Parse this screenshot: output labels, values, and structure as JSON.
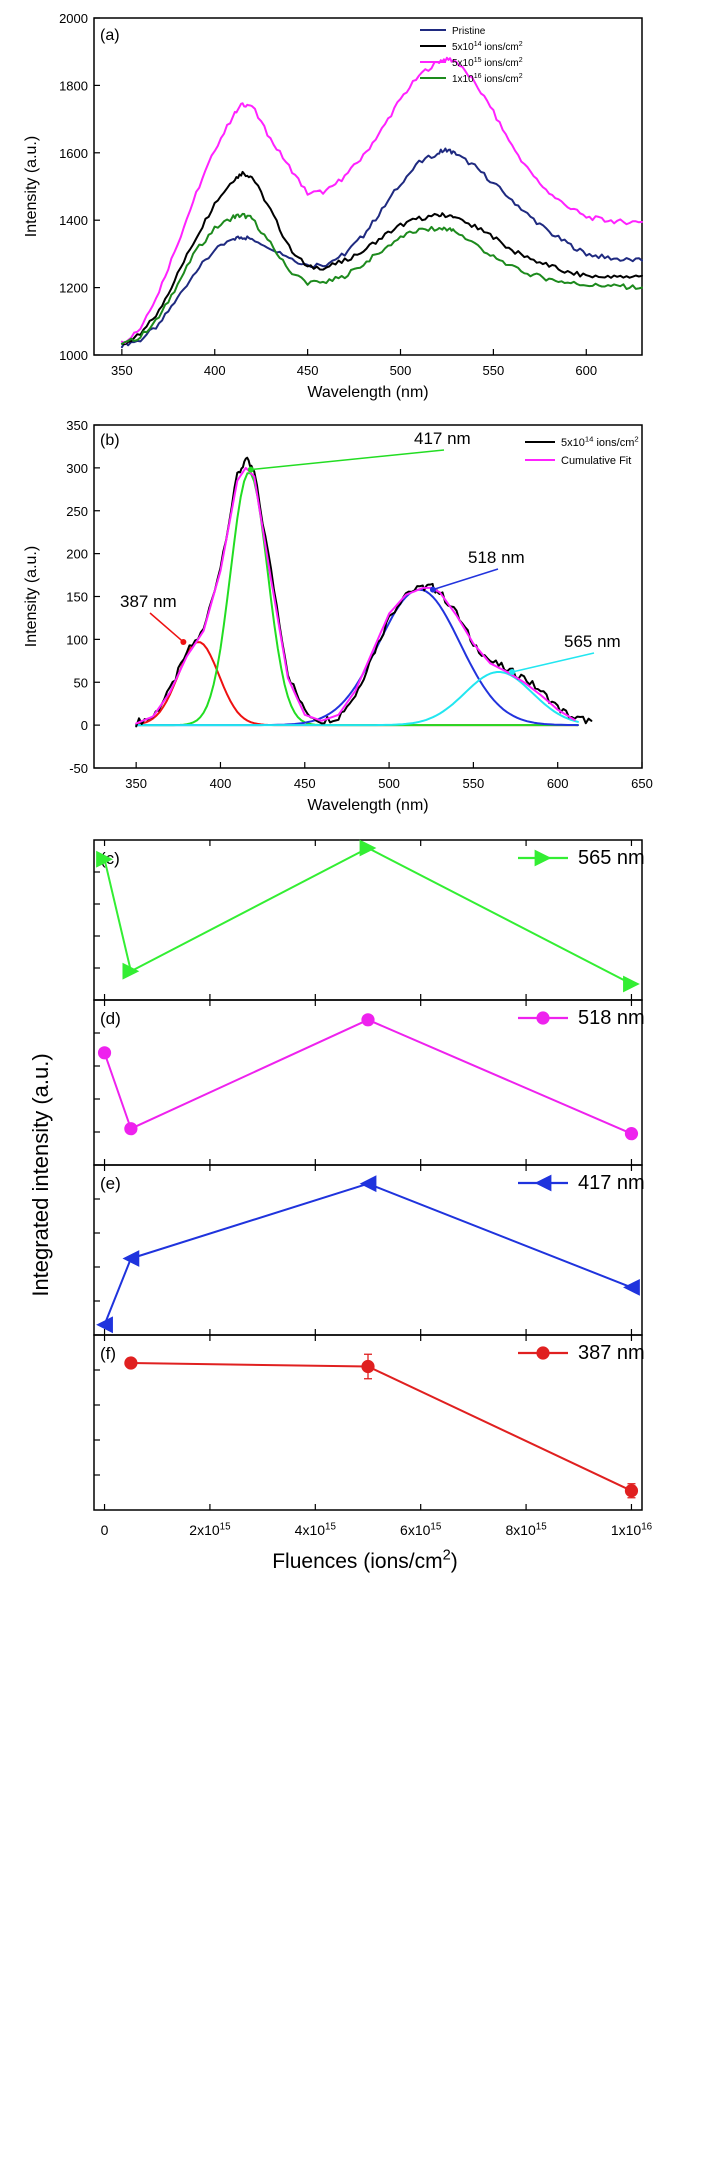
{
  "chart_data": [
    {
      "panel": "(a)",
      "type": "line",
      "xlabel": "Wavelength (nm)",
      "ylabel": "Intensity (a.u.)",
      "xlim": [
        335,
        630
      ],
      "ylim": [
        1000,
        2000
      ],
      "xticks": [
        350,
        400,
        450,
        500,
        550,
        600
      ],
      "yticks": [
        1000,
        1200,
        1400,
        1600,
        1800,
        2000
      ],
      "legend_position": "top-right",
      "series": [
        {
          "name": "Pristine",
          "exp": "",
          "unit": "",
          "color": "#1f2a80",
          "x": [
            350,
            360,
            370,
            380,
            390,
            400,
            410,
            415,
            420,
            430,
            440,
            450,
            460,
            470,
            480,
            490,
            500,
            510,
            520,
            525,
            530,
            540,
            550,
            560,
            570,
            580,
            590,
            600,
            610,
            620,
            630
          ],
          "y": [
            1030,
            1045,
            1090,
            1170,
            1250,
            1310,
            1345,
            1350,
            1345,
            1320,
            1290,
            1265,
            1270,
            1300,
            1355,
            1430,
            1510,
            1570,
            1600,
            1610,
            1595,
            1560,
            1510,
            1460,
            1410,
            1365,
            1330,
            1300,
            1290,
            1283,
            1280
          ]
        },
        {
          "name": "5x10",
          "exp": "14",
          "unit": " ions/cm",
          "color": "#000000",
          "x": [
            350,
            360,
            370,
            380,
            390,
            400,
            410,
            415,
            420,
            430,
            440,
            450,
            460,
            470,
            480,
            490,
            500,
            510,
            520,
            525,
            530,
            540,
            550,
            560,
            570,
            580,
            590,
            600,
            610,
            620,
            630
          ],
          "y": [
            1030,
            1060,
            1130,
            1240,
            1350,
            1450,
            1520,
            1540,
            1530,
            1430,
            1320,
            1260,
            1260,
            1280,
            1310,
            1350,
            1385,
            1405,
            1415,
            1415,
            1405,
            1380,
            1350,
            1310,
            1285,
            1265,
            1245,
            1235,
            1230,
            1232,
            1235
          ]
        },
        {
          "name": "5x10",
          "exp": "15",
          "unit": " ions/cm",
          "color": "#ff22ff",
          "x": [
            350,
            360,
            370,
            380,
            390,
            400,
            410,
            415,
            420,
            430,
            440,
            450,
            460,
            470,
            480,
            490,
            500,
            510,
            520,
            525,
            530,
            540,
            550,
            560,
            570,
            580,
            590,
            600,
            610,
            620,
            630
          ],
          "y": [
            1035,
            1080,
            1190,
            1330,
            1480,
            1610,
            1710,
            1745,
            1740,
            1640,
            1560,
            1480,
            1485,
            1530,
            1590,
            1670,
            1760,
            1830,
            1870,
            1880,
            1870,
            1810,
            1720,
            1620,
            1540,
            1480,
            1440,
            1410,
            1400,
            1395,
            1395
          ]
        },
        {
          "name": "1x10",
          "exp": "16",
          "unit": " ions/cm",
          "color": "#1d8a1d",
          "x": [
            350,
            360,
            370,
            380,
            390,
            400,
            410,
            415,
            420,
            430,
            440,
            450,
            460,
            470,
            480,
            490,
            500,
            510,
            520,
            525,
            530,
            540,
            550,
            560,
            570,
            580,
            590,
            600,
            610,
            620,
            630
          ],
          "y": [
            1030,
            1055,
            1110,
            1210,
            1310,
            1375,
            1410,
            1415,
            1405,
            1330,
            1250,
            1215,
            1215,
            1235,
            1270,
            1310,
            1350,
            1370,
            1375,
            1375,
            1365,
            1330,
            1290,
            1260,
            1240,
            1225,
            1215,
            1208,
            1205,
            1203,
            1200
          ]
        }
      ]
    },
    {
      "panel": "(b)",
      "type": "line",
      "xlabel": "Wavelength (nm)",
      "ylabel": "Intensity (a.u.)",
      "xlim": [
        325,
        650
      ],
      "ylim": [
        -50,
        350
      ],
      "xticks": [
        350,
        400,
        450,
        500,
        550,
        600,
        650
      ],
      "yticks": [
        -50,
        0,
        50,
        100,
        150,
        200,
        250,
        300,
        350
      ],
      "legend_position": "top-right",
      "series": [
        {
          "name": "5x10",
          "exp": "14",
          "unit": " ions/cm",
          "color": "#000000",
          "x": [
            350,
            360,
            370,
            380,
            390,
            400,
            410,
            415,
            420,
            430,
            440,
            450,
            460,
            470,
            480,
            490,
            500,
            510,
            520,
            525,
            530,
            540,
            550,
            560,
            570,
            580,
            590,
            600,
            610,
            620
          ],
          "y": [
            3,
            10,
            40,
            85,
            110,
            185,
            290,
            310,
            295,
            180,
            60,
            15,
            5,
            10,
            35,
            80,
            125,
            155,
            160,
            162,
            155,
            130,
            95,
            75,
            65,
            55,
            40,
            20,
            8,
            5
          ]
        },
        {
          "name": "Cumulative Fit",
          "exp": "",
          "unit": "",
          "color": "#ff22ff",
          "x": [
            350,
            360,
            370,
            380,
            390,
            400,
            410,
            415,
            420,
            430,
            440,
            450,
            460,
            470,
            480,
            490,
            500,
            510,
            520,
            525,
            530,
            540,
            550,
            560,
            570,
            580,
            590,
            600,
            610
          ],
          "y": [
            2,
            10,
            38,
            80,
            110,
            180,
            285,
            300,
            290,
            170,
            55,
            12,
            5,
            12,
            40,
            85,
            130,
            152,
            160,
            160,
            155,
            128,
            95,
            72,
            62,
            50,
            35,
            18,
            6
          ]
        }
      ],
      "components": [
        {
          "label": "387 nm",
          "color": "#ee1111",
          "center": 387,
          "height": 97,
          "sigma": 12
        },
        {
          "label": "417 nm",
          "color": "#22dd22",
          "center": 417,
          "height": 295,
          "sigma": 11
        },
        {
          "label": "518 nm",
          "color": "#2233dd",
          "center": 518,
          "height": 158,
          "sigma": 24
        },
        {
          "label": "565 nm",
          "color": "#22e6f0",
          "center": 565,
          "height": 62,
          "sigma": 20
        }
      ]
    },
    {
      "panel": "(c)",
      "type": "line",
      "series_label": "565 nm",
      "color": "#33ee33",
      "marker": "triangle-right",
      "x": [
        0,
        500000000000000.0,
        5000000000000000.0,
        1e+16
      ],
      "y": [
        0.88,
        0.18,
        0.95,
        0.1
      ],
      "error": [
        0,
        0,
        0,
        0
      ]
    },
    {
      "panel": "(d)",
      "type": "line",
      "series_label": "518 nm",
      "color": "#ee22ee",
      "marker": "circle",
      "x": [
        0,
        500000000000000.0,
        5000000000000000.0,
        1e+16
      ],
      "y": [
        0.68,
        0.22,
        0.88,
        0.19
      ],
      "error": [
        0,
        0,
        0,
        0
      ]
    },
    {
      "panel": "(e)",
      "type": "line",
      "series_label": "417 nm",
      "color": "#1f33dd",
      "marker": "triangle-left",
      "x": [
        0,
        500000000000000.0,
        5000000000000000.0,
        1e+16
      ],
      "y": [
        0.06,
        0.45,
        0.89,
        0.28
      ],
      "error": [
        0,
        0,
        0,
        0
      ]
    },
    {
      "panel": "(f)",
      "type": "line",
      "series_label": "387 nm",
      "color": "#e02020",
      "marker": "circle",
      "x": [
        0,
        500000000000000.0,
        5000000000000000.0,
        1e+16
      ],
      "y": [
        null,
        0.84,
        0.82,
        0.11
      ],
      "error": [
        0,
        0.02,
        0.07,
        0.04
      ]
    }
  ],
  "shared_axes": {
    "ylabel_cdef": "Integrated intensity (a.u.)",
    "xlabel_cdef": "Fluences (ions/cm",
    "xlabel_sup": "2",
    "xlabel_close": ")",
    "xlim": [
      -200000000000000.0,
      1.02e+16
    ],
    "xticks": [
      {
        "value": 0,
        "base": "0",
        "exp": ""
      },
      {
        "value": 2000000000000000.0,
        "base": "2x10",
        "exp": "15"
      },
      {
        "value": 4000000000000000.0,
        "base": "4x10",
        "exp": "15"
      },
      {
        "value": 6000000000000000.0,
        "base": "6x10",
        "exp": "15"
      },
      {
        "value": 8000000000000000.0,
        "base": "8x10",
        "exp": "15"
      },
      {
        "value": 1e+16,
        "base": "1x10",
        "exp": "16"
      }
    ]
  }
}
